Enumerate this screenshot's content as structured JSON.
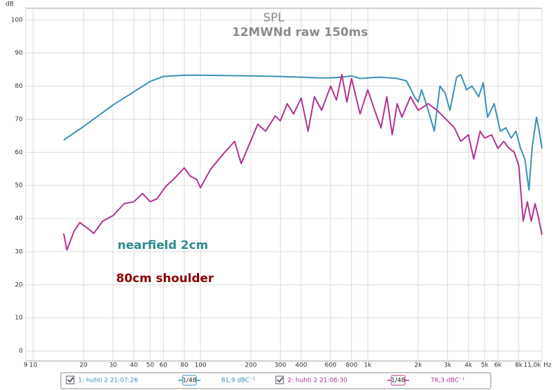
{
  "chart_data": {
    "type": "line",
    "title": "SPL",
    "subtitle": "12MWNd raw 150ms",
    "x_unit": "Hz",
    "y_unit": "dB",
    "xscale": "log",
    "grid": true,
    "xlim": [
      9,
      11000
    ],
    "ylim": [
      -3,
      103.5
    ],
    "xticks": [
      9,
      10,
      20,
      30,
      40,
      50,
      60,
      80,
      100,
      200,
      300,
      400,
      600,
      800,
      {
        "value": 1000,
        "label": "1k"
      },
      {
        "value": 2000,
        "label": "2k"
      },
      {
        "value": 3000,
        "label": "3k"
      },
      {
        "value": 4000,
        "label": "4k"
      },
      {
        "value": 5000,
        "label": "5k"
      },
      {
        "value": 6000,
        "label": "6k"
      },
      {
        "value": 8000,
        "label": "8k"
      },
      {
        "value": 11000,
        "label": "11,0k"
      }
    ],
    "yticks": [
      0,
      10,
      20,
      30,
      40,
      50,
      60,
      70,
      80,
      90,
      100
    ],
    "annotations": [
      {
        "text": "nearfield 2cm",
        "color": "#2e8b8b"
      },
      {
        "text": "80cm shoulder",
        "color": "#8b0000"
      }
    ],
    "series": [
      {
        "name": "1: huhti 2 21:07:26",
        "color": "#3a8fb7",
        "smoothing": "1/48",
        "level": "81,9 dBC⁻¹",
        "x": [
          15.2,
          20,
          30,
          40,
          50,
          60,
          80,
          100,
          200,
          300,
          400,
          500,
          600,
          700,
          800,
          900,
          1000,
          1200,
          1500,
          1700,
          1800,
          1900,
          2000,
          2100,
          2300,
          2500,
          2700,
          2900,
          3100,
          3400,
          3600,
          3900,
          4200,
          4600,
          4900,
          5200,
          5700,
          6200,
          6700,
          7200,
          7700,
          8200,
          8700,
          9200,
          9600,
          10200,
          10600,
          11000
        ],
        "values": [
          63.7,
          67.8,
          74.3,
          78.3,
          81.4,
          82.9,
          83.3,
          83.3,
          83.1,
          82.9,
          82.7,
          82.5,
          82.5,
          82.7,
          83.1,
          82.3,
          82.5,
          82.7,
          82.3,
          81.6,
          79.3,
          76.8,
          75.2,
          78.9,
          72.7,
          66.4,
          80,
          77.9,
          72.7,
          82.7,
          83.5,
          78.9,
          80,
          76.8,
          81,
          70.6,
          74.7,
          66.4,
          67.4,
          64.3,
          66.4,
          61.2,
          58,
          48.6,
          61.2,
          70.6,
          66.4,
          61.2
        ]
      },
      {
        "name": "2: huhti 2 21:08:30",
        "color": "#b0338f",
        "smoothing": "1/48",
        "level": "76,3 dBC⁻¹",
        "x": [
          15.2,
          15.9,
          17.5,
          19,
          21,
          23,
          26,
          30,
          35,
          40,
          45,
          50,
          55,
          62,
          70,
          80,
          87,
          95,
          100,
          115,
          140,
          160,
          175,
          195,
          220,
          245,
          280,
          300,
          330,
          360,
          400,
          440,
          480,
          530,
          600,
          650,
          700,
          750,
          800,
          900,
          1000,
          1100,
          1200,
          1300,
          1400,
          1500,
          1600,
          1800,
          2000,
          2300,
          2600,
          3000,
          3300,
          3600,
          4000,
          4300,
          4700,
          5000,
          5500,
          6000,
          6500,
          7000,
          7500,
          8000,
          8500,
          9000,
          9500,
          10000,
          10500,
          11000
        ],
        "values": [
          35.5,
          30.5,
          36.1,
          38.8,
          37.2,
          35.5,
          39.2,
          40.9,
          44.5,
          45.1,
          47.6,
          45.1,
          46,
          49.7,
          52.2,
          55.3,
          52.8,
          51.8,
          49.3,
          54.9,
          60.1,
          63.3,
          56.6,
          62.2,
          68.5,
          66.4,
          71,
          69.5,
          74.7,
          71.6,
          76.4,
          66.4,
          76.8,
          72.7,
          80,
          75.8,
          83.5,
          75.2,
          82.3,
          71.6,
          78.9,
          72.7,
          67.4,
          76.8,
          65.3,
          74.7,
          70.6,
          76.8,
          72.7,
          74.7,
          72.7,
          69.5,
          67.4,
          63.3,
          65.3,
          58,
          66.4,
          64.3,
          65.3,
          61.2,
          63.3,
          61.2,
          60.1,
          56,
          39.2,
          45.1,
          39.2,
          44.5,
          40.3,
          35.1
        ]
      }
    ]
  }
}
